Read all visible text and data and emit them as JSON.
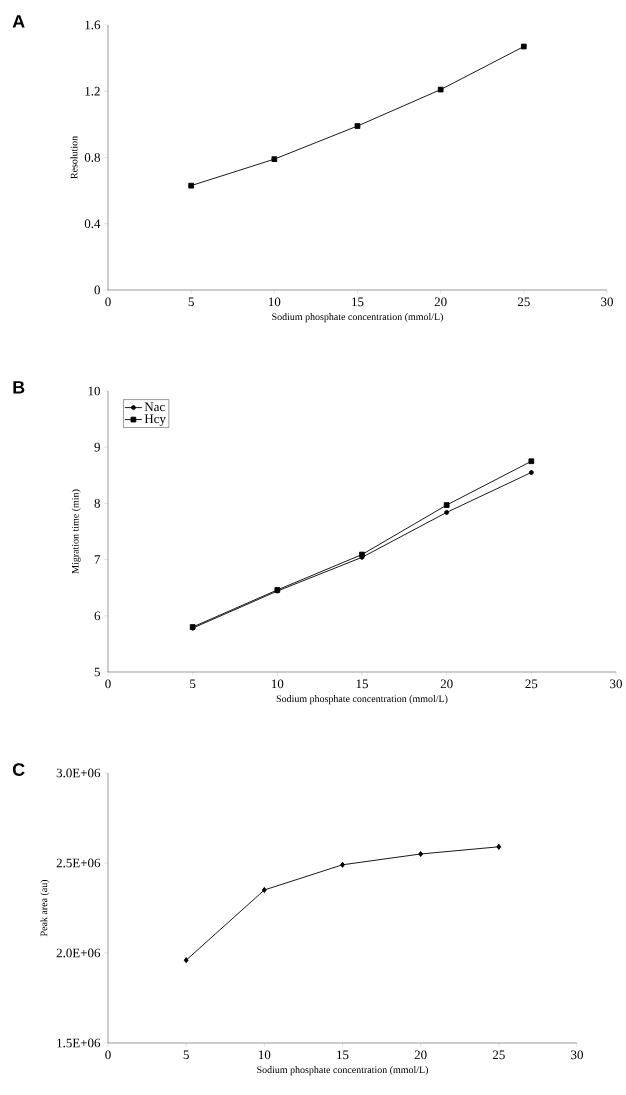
{
  "chart_data": [
    {
      "type": "line",
      "annotations": [
        "A"
      ],
      "xlabel": "Sodium phosphate concentration (mmol/L)",
      "ylabel": "Resolution",
      "x": [
        5,
        10,
        15,
        20,
        25
      ],
      "marker": "square",
      "series": [
        {
          "color": "#000000",
          "values": [
            0.63,
            0.79,
            0.99,
            1.21,
            1.47
          ]
        }
      ],
      "xlim": [
        0,
        30
      ],
      "xticks": [
        0,
        5,
        10,
        15,
        20,
        25,
        30
      ],
      "ylim": [
        0,
        1.6
      ],
      "yticks": [
        0,
        0.4,
        0.8,
        1.2,
        1.6
      ],
      "grid": false,
      "legend": false
    },
    {
      "type": "line",
      "annotations": [
        "B"
      ],
      "xlabel": "Sodium phosphate concentration (mmol/L)",
      "ylabel": "Migration time (min)",
      "x": [
        5,
        10,
        15,
        20,
        25
      ],
      "series": [
        {
          "name": "Nac",
          "color": "#000000",
          "marker": "circle",
          "values": [
            5.78,
            6.44,
            7.04,
            7.84,
            8.55
          ]
        },
        {
          "name": "Hcy",
          "color": "#000000",
          "marker": "square",
          "values": [
            5.8,
            6.46,
            7.09,
            7.97,
            8.75
          ]
        }
      ],
      "xlim": [
        0,
        30
      ],
      "xticks": [
        0,
        5,
        10,
        15,
        20,
        25,
        30
      ],
      "ylim": [
        5,
        10
      ],
      "yticks": [
        5,
        6,
        7,
        8,
        9,
        10
      ],
      "grid": false,
      "legend": "top left"
    },
    {
      "type": "line",
      "annotations": [
        "C"
      ],
      "xlabel": "Sodium phosphate concentration (mmol/L)",
      "ylabel": "Peak area (au)",
      "x": [
        5,
        10,
        15,
        20,
        25
      ],
      "marker": "diamond",
      "series": [
        {
          "color": "#000000",
          "values": [
            1960000,
            2350000,
            2490000,
            2550000,
            2590000
          ]
        }
      ],
      "xlim": [
        0,
        30
      ],
      "xticks": [
        0,
        5,
        10,
        15,
        20,
        25,
        30
      ],
      "ylim": [
        1500000,
        3000000
      ],
      "yticks": [
        {
          "value": 1500000,
          "label": "1.5E+06"
        },
        {
          "value": 2000000,
          "label": "2.0E+06"
        },
        {
          "value": 2500000,
          "label": "2.5E+06"
        },
        {
          "value": 3000000,
          "label": "3.0E+06"
        }
      ],
      "grid": false,
      "legend": false
    }
  ]
}
